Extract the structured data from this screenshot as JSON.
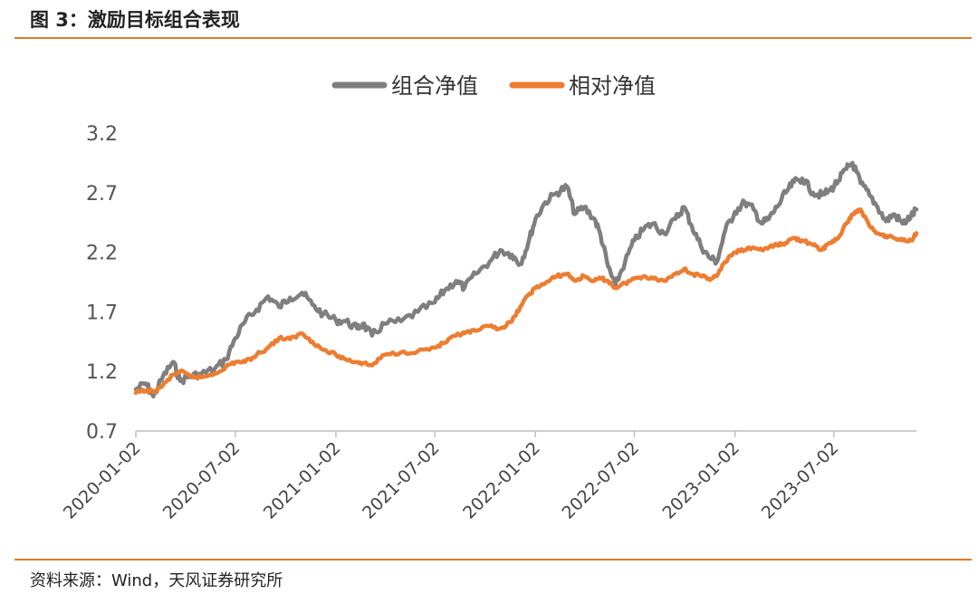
{
  "figure_title": "图 3：激励目标组合表现",
  "source_note": "资料来源：Wind，天风证券研究所",
  "colors": {
    "accent": "#E07A25",
    "series1": "#7F7F7F",
    "series2": "#ED7D31",
    "axis": "#BFBFBF"
  },
  "chart_data": {
    "type": "line",
    "title": "",
    "xlabel": "",
    "ylabel": "",
    "legend_position": "top-center",
    "grid": false,
    "xlim": [
      "2020-01-02",
      "2023-11-30"
    ],
    "ylim": [
      0.7,
      3.2
    ],
    "y_ticks": [
      "0.7",
      "1.2",
      "1.7",
      "2.2",
      "2.7",
      "3.2"
    ],
    "x_ticks": [
      "2020-01-02",
      "2020-07-02",
      "2021-01-02",
      "2021-07-02",
      "2022-01-02",
      "2022-07-02",
      "2023-01-02",
      "2023-07-02"
    ],
    "series": [
      {
        "name": "组合净值",
        "color": "#7F7F7F",
        "points": [
          [
            "2020-01-02",
            1.05
          ],
          [
            "2020-01-20",
            1.1
          ],
          [
            "2020-02-03",
            0.99
          ],
          [
            "2020-02-20",
            1.15
          ],
          [
            "2020-03-10",
            1.28
          ],
          [
            "2020-03-23",
            1.12
          ],
          [
            "2020-04-10",
            1.16
          ],
          [
            "2020-05-01",
            1.18
          ],
          [
            "2020-05-25",
            1.22
          ],
          [
            "2020-06-15",
            1.3
          ],
          [
            "2020-07-02",
            1.48
          ],
          [
            "2020-07-20",
            1.62
          ],
          [
            "2020-08-10",
            1.72
          ],
          [
            "2020-08-31",
            1.83
          ],
          [
            "2020-09-20",
            1.74
          ],
          [
            "2020-10-10",
            1.82
          ],
          [
            "2020-11-01",
            1.86
          ],
          [
            "2020-11-20",
            1.76
          ],
          [
            "2020-12-10",
            1.68
          ],
          [
            "2021-01-02",
            1.63
          ],
          [
            "2021-01-20",
            1.62
          ],
          [
            "2021-02-10",
            1.56
          ],
          [
            "2021-02-20",
            1.6
          ],
          [
            "2021-03-09",
            1.5
          ],
          [
            "2021-04-01",
            1.6
          ],
          [
            "2021-05-01",
            1.62
          ],
          [
            "2021-06-01",
            1.7
          ],
          [
            "2021-07-02",
            1.78
          ],
          [
            "2021-07-20",
            1.88
          ],
          [
            "2021-08-10",
            1.96
          ],
          [
            "2021-08-25",
            1.9
          ],
          [
            "2021-09-15",
            2.02
          ],
          [
            "2021-10-10",
            2.12
          ],
          [
            "2021-10-30",
            2.22
          ],
          [
            "2021-11-20",
            2.18
          ],
          [
            "2021-12-05",
            2.1
          ],
          [
            "2021-12-20",
            2.28
          ],
          [
            "2022-01-02",
            2.48
          ],
          [
            "2022-01-20",
            2.62
          ],
          [
            "2022-02-10",
            2.7
          ],
          [
            "2022-03-01",
            2.75
          ],
          [
            "2022-03-15",
            2.52
          ],
          [
            "2022-04-01",
            2.58
          ],
          [
            "2022-04-20",
            2.48
          ],
          [
            "2022-05-01",
            2.35
          ],
          [
            "2022-05-15",
            2.08
          ],
          [
            "2022-05-28",
            1.92
          ],
          [
            "2022-06-15",
            2.12
          ],
          [
            "2022-07-02",
            2.3
          ],
          [
            "2022-07-20",
            2.4
          ],
          [
            "2022-08-05",
            2.44
          ],
          [
            "2022-08-25",
            2.36
          ],
          [
            "2022-09-15",
            2.48
          ],
          [
            "2022-10-01",
            2.58
          ],
          [
            "2022-10-15",
            2.42
          ],
          [
            "2022-10-31",
            2.26
          ],
          [
            "2022-11-15",
            2.16
          ],
          [
            "2022-11-30",
            2.12
          ],
          [
            "2022-12-15",
            2.38
          ],
          [
            "2023-01-02",
            2.54
          ],
          [
            "2023-01-20",
            2.62
          ],
          [
            "2023-02-05",
            2.56
          ],
          [
            "2023-02-20",
            2.44
          ],
          [
            "2023-03-05",
            2.48
          ],
          [
            "2023-03-20",
            2.58
          ],
          [
            "2023-04-05",
            2.7
          ],
          [
            "2023-04-20",
            2.79
          ],
          [
            "2023-05-05",
            2.82
          ],
          [
            "2023-05-25",
            2.7
          ],
          [
            "2023-06-10",
            2.68
          ],
          [
            "2023-06-25",
            2.72
          ],
          [
            "2023-07-10",
            2.8
          ],
          [
            "2023-07-25",
            2.9
          ],
          [
            "2023-08-05",
            2.95
          ],
          [
            "2023-08-20",
            2.78
          ],
          [
            "2023-09-05",
            2.68
          ],
          [
            "2023-09-20",
            2.58
          ],
          [
            "2023-10-05",
            2.46
          ],
          [
            "2023-10-20",
            2.52
          ],
          [
            "2023-11-05",
            2.44
          ],
          [
            "2023-11-20",
            2.5
          ],
          [
            "2023-11-30",
            2.56
          ]
        ]
      },
      {
        "name": "相对净值",
        "color": "#ED7D31",
        "points": [
          [
            "2020-01-02",
            1.02
          ],
          [
            "2020-01-20",
            1.04
          ],
          [
            "2020-02-03",
            1.03
          ],
          [
            "2020-02-20",
            1.08
          ],
          [
            "2020-03-10",
            1.17
          ],
          [
            "2020-03-23",
            1.2
          ],
          [
            "2020-04-10",
            1.16
          ],
          [
            "2020-05-01",
            1.15
          ],
          [
            "2020-05-25",
            1.18
          ],
          [
            "2020-06-15",
            1.24
          ],
          [
            "2020-07-02",
            1.28
          ],
          [
            "2020-07-20",
            1.28
          ],
          [
            "2020-08-10",
            1.34
          ],
          [
            "2020-08-31",
            1.4
          ],
          [
            "2020-09-20",
            1.48
          ],
          [
            "2020-10-10",
            1.47
          ],
          [
            "2020-11-01",
            1.52
          ],
          [
            "2020-11-20",
            1.45
          ],
          [
            "2020-12-10",
            1.38
          ],
          [
            "2021-01-02",
            1.34
          ],
          [
            "2021-01-20",
            1.3
          ],
          [
            "2021-02-10",
            1.28
          ],
          [
            "2021-02-20",
            1.27
          ],
          [
            "2021-03-09",
            1.25
          ],
          [
            "2021-04-01",
            1.34
          ],
          [
            "2021-05-01",
            1.36
          ],
          [
            "2021-06-01",
            1.37
          ],
          [
            "2021-07-02",
            1.4
          ],
          [
            "2021-07-20",
            1.44
          ],
          [
            "2021-08-10",
            1.5
          ],
          [
            "2021-08-25",
            1.52
          ],
          [
            "2021-09-15",
            1.54
          ],
          [
            "2021-10-10",
            1.58
          ],
          [
            "2021-10-30",
            1.56
          ],
          [
            "2021-11-20",
            1.62
          ],
          [
            "2021-12-05",
            1.74
          ],
          [
            "2021-12-20",
            1.84
          ],
          [
            "2022-01-02",
            1.9
          ],
          [
            "2022-01-20",
            1.94
          ],
          [
            "2022-02-10",
            2.0
          ],
          [
            "2022-03-01",
            2.02
          ],
          [
            "2022-03-15",
            1.96
          ],
          [
            "2022-04-01",
            2.0
          ],
          [
            "2022-04-20",
            1.96
          ],
          [
            "2022-05-01",
            1.98
          ],
          [
            "2022-05-15",
            1.96
          ],
          [
            "2022-05-28",
            1.9
          ],
          [
            "2022-06-15",
            1.94
          ],
          [
            "2022-07-02",
            1.98
          ],
          [
            "2022-07-20",
            2.0
          ],
          [
            "2022-08-05",
            1.98
          ],
          [
            "2022-08-25",
            1.96
          ],
          [
            "2022-09-15",
            2.02
          ],
          [
            "2022-10-01",
            2.06
          ],
          [
            "2022-10-15",
            2.02
          ],
          [
            "2022-10-31",
            2.0
          ],
          [
            "2022-11-15",
            1.98
          ],
          [
            "2022-11-30",
            2.0
          ],
          [
            "2022-12-15",
            2.12
          ],
          [
            "2023-01-02",
            2.2
          ],
          [
            "2023-01-20",
            2.22
          ],
          [
            "2023-02-05",
            2.24
          ],
          [
            "2023-02-20",
            2.22
          ],
          [
            "2023-03-05",
            2.24
          ],
          [
            "2023-03-20",
            2.26
          ],
          [
            "2023-04-05",
            2.28
          ],
          [
            "2023-04-20",
            2.32
          ],
          [
            "2023-05-05",
            2.3
          ],
          [
            "2023-05-25",
            2.26
          ],
          [
            "2023-06-10",
            2.22
          ],
          [
            "2023-06-25",
            2.28
          ],
          [
            "2023-07-10",
            2.32
          ],
          [
            "2023-07-25",
            2.44
          ],
          [
            "2023-08-05",
            2.52
          ],
          [
            "2023-08-20",
            2.56
          ],
          [
            "2023-09-05",
            2.42
          ],
          [
            "2023-09-20",
            2.36
          ],
          [
            "2023-10-05",
            2.34
          ],
          [
            "2023-10-20",
            2.32
          ],
          [
            "2023-11-05",
            2.3
          ],
          [
            "2023-11-20",
            2.3
          ],
          [
            "2023-11-30",
            2.36
          ]
        ]
      }
    ]
  }
}
